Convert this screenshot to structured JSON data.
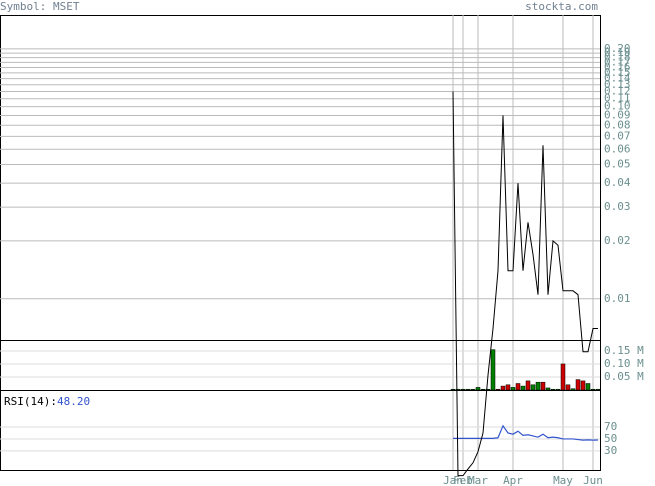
{
  "symbol_label": "Symbol: MSET",
  "source": "stockta.com",
  "chart_data": {
    "type": "line",
    "log_scale": true,
    "grid": true,
    "color": "#000000",
    "categories": [
      "Jan",
      null,
      "Feb",
      null,
      null,
      "Mar",
      null,
      null,
      null,
      null,
      null,
      null,
      "Apr",
      null,
      null,
      null,
      null,
      null,
      null,
      null,
      null,
      null,
      "May",
      null,
      null,
      null,
      null,
      null,
      "Jun",
      null
    ],
    "values": [
      0.12,
      0.0012,
      0.0012,
      0.0013,
      0.0014,
      0.0016,
      0.002,
      0.004,
      0.007,
      0.014,
      0.09,
      0.014,
      0.014,
      0.04,
      0.014,
      0.025,
      0.017,
      0.0105,
      0.063,
      0.0105,
      0.02,
      0.019,
      0.011,
      0.011,
      0.011,
      0.0105,
      0.0053,
      0.0053,
      0.007,
      0.007
    ],
    "ylim": [
      0.0061,
      0.3
    ],
    "yticks": [
      0.01,
      0.02,
      0.03,
      0.04,
      0.05,
      0.06,
      0.07,
      0.08,
      0.09,
      {
        "value": 0.1,
        "label": "0.10"
      },
      0.11,
      0.12,
      0.13,
      0.14,
      0.15,
      0.16,
      0.17,
      0.18,
      0.19,
      {
        "value": 0.2,
        "label": "0.20"
      }
    ],
    "volume": {
      "values": [
        3000,
        3000,
        3000,
        3000,
        3000,
        10000,
        3000,
        3000,
        155000,
        3000,
        15000,
        20000,
        10000,
        25000,
        15000,
        35000,
        20000,
        30000,
        30000,
        8000,
        3000,
        3000,
        100000,
        20000,
        5000,
        40000,
        35000,
        25000,
        3000,
        3000
      ],
      "colors": [
        "#008000",
        "#008000",
        "#008000",
        "#008000",
        "#008000",
        "#008000",
        "#008000",
        "#008000",
        "#008000",
        "#cc0000",
        "#cc0000",
        "#cc0000",
        "#008000",
        "#cc0000",
        "#008000",
        "#cc0000",
        "#008000",
        "#008000",
        "#cc0000",
        "#008000",
        "#008000",
        "#008000",
        "#cc0000",
        "#cc0000",
        "#008000",
        "#cc0000",
        "#cc0000",
        "#008000",
        "#008000",
        "#008000"
      ],
      "ylim": [
        0,
        192000
      ],
      "yticks": [
        {
          "value": 50000,
          "label": "0.05 M"
        },
        {
          "value": 100000,
          "label": "0.10 M"
        },
        {
          "value": 150000,
          "label": "0.15 M"
        }
      ]
    },
    "rsi": {
      "label": "RSI(14):",
      "value": 48.2,
      "value_label": "48.20",
      "color": "#3355cc",
      "values": [
        51,
        51,
        51,
        51,
        51,
        51,
        51,
        51,
        51,
        52,
        72,
        60,
        58,
        63,
        56,
        57,
        55,
        53,
        58,
        52,
        53,
        52,
        50,
        50,
        50,
        49,
        48,
        48.5,
        48,
        48.2
      ],
      "ylim": [
        -2,
        132
      ],
      "yticks": [
        30,
        50,
        70
      ]
    }
  }
}
